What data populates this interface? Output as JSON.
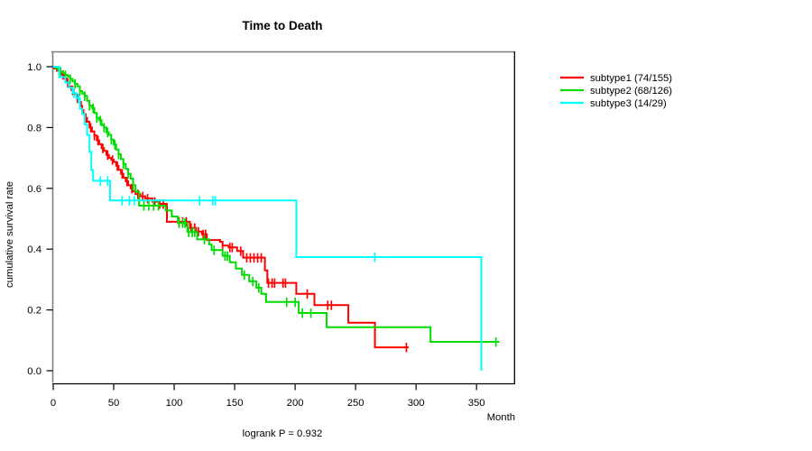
{
  "title": "Time to Death",
  "footer": "logrank P = 0.932",
  "axes": {
    "x": {
      "label": "Month",
      "ticks": [
        0,
        50,
        100,
        150,
        200,
        250,
        300,
        350
      ]
    },
    "y": {
      "label": "cumulative survival rate",
      "ticks": [
        1.0,
        0.8,
        0.6,
        0.4,
        0.2,
        0.0
      ]
    }
  },
  "legend": {
    "items": [
      {
        "label": "subtype1 (74/155)",
        "color": "#FF0000"
      },
      {
        "label": "subtype2 (68/126)",
        "color": "#00DC00"
      },
      {
        "label": "subtype3 (14/29)",
        "color": "#00FFFF"
      }
    ]
  },
  "chart_data": {
    "type": "line",
    "subtype": "kaplan-meier-step",
    "title": "Time to Death",
    "xlabel": "Month",
    "ylabel": "cumulative survival rate",
    "xlim": [
      0,
      380
    ],
    "ylim": [
      0.0,
      1.0
    ],
    "x_ticks": [
      0,
      50,
      100,
      150,
      200,
      250,
      300,
      350
    ],
    "y_ticks": [
      1.0,
      0.8,
      0.6,
      0.4,
      0.2,
      0.0
    ],
    "annotation": "logrank P = 0.932",
    "legend_position": "right-outside",
    "grid": false,
    "series": [
      {
        "name": "subtype1 (74/155)",
        "events": 74,
        "n": 155,
        "color": "#FF0000",
        "steps": [
          [
            0,
            1.0
          ],
          [
            1,
            0.994
          ],
          [
            3,
            0.987
          ],
          [
            5,
            0.981
          ],
          [
            7,
            0.974
          ],
          [
            9,
            0.961
          ],
          [
            11,
            0.948
          ],
          [
            13,
            0.935
          ],
          [
            15,
            0.923
          ],
          [
            17,
            0.91
          ],
          [
            19,
            0.897
          ],
          [
            21,
            0.884
          ],
          [
            23,
            0.871
          ],
          [
            24,
            0.858
          ],
          [
            25,
            0.845
          ],
          [
            26,
            0.832
          ],
          [
            28,
            0.819
          ],
          [
            30,
            0.8
          ],
          [
            32,
            0.787
          ],
          [
            34,
            0.774
          ],
          [
            36,
            0.758
          ],
          [
            38,
            0.745
          ],
          [
            40,
            0.732
          ],
          [
            42,
            0.723
          ],
          [
            44,
            0.71
          ],
          [
            46,
            0.7
          ],
          [
            48,
            0.694
          ],
          [
            50,
            0.687
          ],
          [
            52,
            0.674
          ],
          [
            54,
            0.661
          ],
          [
            56,
            0.648
          ],
          [
            58,
            0.635
          ],
          [
            60,
            0.623
          ],
          [
            62,
            0.61
          ],
          [
            64,
            0.6
          ],
          [
            66,
            0.59
          ],
          [
            68,
            0.581
          ],
          [
            72,
            0.574
          ],
          [
            76,
            0.567
          ],
          [
            82,
            0.556
          ],
          [
            88,
            0.549
          ],
          [
            94,
            0.49
          ],
          [
            113,
            0.47
          ],
          [
            118,
            0.458
          ],
          [
            123,
            0.449
          ],
          [
            127,
            0.43
          ],
          [
            138,
            0.424
          ],
          [
            140,
            0.412
          ],
          [
            145,
            0.406
          ],
          [
            152,
            0.394
          ],
          [
            157,
            0.372
          ],
          [
            175,
            0.33
          ],
          [
            177,
            0.289
          ],
          [
            201,
            0.253
          ],
          [
            216,
            0.216
          ],
          [
            244,
            0.158
          ],
          [
            266,
            0.077
          ]
        ],
        "end_time": 294,
        "censor_times": [
          5,
          8,
          12,
          16,
          20,
          24,
          27,
          31,
          34,
          37,
          41,
          45,
          49,
          53,
          57,
          61,
          65,
          70,
          74,
          78,
          84,
          88,
          91,
          104,
          107,
          110,
          114,
          117,
          120,
          124,
          126,
          140,
          146,
          148,
          155,
          160,
          163,
          166,
          169,
          172,
          178,
          181,
          183,
          190,
          192,
          210,
          227,
          230,
          292
        ]
      },
      {
        "name": "subtype2 (68/126)",
        "events": 68,
        "n": 126,
        "color": "#00DC00",
        "steps": [
          [
            0,
            1.0
          ],
          [
            2,
            0.995
          ],
          [
            4,
            0.989
          ],
          [
            6,
            0.984
          ],
          [
            8,
            0.979
          ],
          [
            10,
            0.973
          ],
          [
            12,
            0.968
          ],
          [
            14,
            0.96
          ],
          [
            16,
            0.952
          ],
          [
            18,
            0.944
          ],
          [
            20,
            0.936
          ],
          [
            22,
            0.92
          ],
          [
            24,
            0.912
          ],
          [
            26,
            0.904
          ],
          [
            28,
            0.888
          ],
          [
            30,
            0.872
          ],
          [
            32,
            0.864
          ],
          [
            34,
            0.848
          ],
          [
            36,
            0.832
          ],
          [
            38,
            0.824
          ],
          [
            40,
            0.808
          ],
          [
            42,
            0.8
          ],
          [
            44,
            0.784
          ],
          [
            46,
            0.776
          ],
          [
            48,
            0.76
          ],
          [
            50,
            0.744
          ],
          [
            52,
            0.728
          ],
          [
            54,
            0.712
          ],
          [
            56,
            0.696
          ],
          [
            58,
            0.68
          ],
          [
            60,
            0.664
          ],
          [
            62,
            0.648
          ],
          [
            64,
            0.632
          ],
          [
            66,
            0.61
          ],
          [
            68,
            0.589
          ],
          [
            71,
            0.543
          ],
          [
            93,
            0.527
          ],
          [
            98,
            0.507
          ],
          [
            103,
            0.486
          ],
          [
            111,
            0.456
          ],
          [
            119,
            0.432
          ],
          [
            129,
            0.415
          ],
          [
            131,
            0.397
          ],
          [
            140,
            0.378
          ],
          [
            146,
            0.357
          ],
          [
            151,
            0.336
          ],
          [
            156,
            0.315
          ],
          [
            162,
            0.294
          ],
          [
            168,
            0.273
          ],
          [
            172,
            0.253
          ],
          [
            176,
            0.226
          ],
          [
            203,
            0.19
          ],
          [
            226,
            0.143
          ],
          [
            312,
            0.095
          ]
        ],
        "end_time": 369,
        "censor_times": [
          6,
          10,
          14,
          18,
          22,
          26,
          30,
          33,
          36,
          39,
          42,
          45,
          48,
          51,
          54,
          58,
          62,
          66,
          75,
          79,
          83,
          87,
          104,
          107,
          109,
          112,
          115,
          117,
          125,
          133,
          142,
          144,
          158,
          165,
          170,
          193,
          200,
          206,
          213,
          366
        ]
      },
      {
        "name": "subtype3 (14/29)",
        "events": 14,
        "n": 29,
        "color": "#00FFFF",
        "steps": [
          [
            0,
            1.0
          ],
          [
            5,
            0.966
          ],
          [
            10,
            0.948
          ],
          [
            13,
            0.931
          ],
          [
            16,
            0.914
          ],
          [
            19,
            0.897
          ],
          [
            22,
            0.862
          ],
          [
            24,
            0.845
          ],
          [
            26,
            0.81
          ],
          [
            28,
            0.776
          ],
          [
            30,
            0.72
          ],
          [
            31.5,
            0.66
          ],
          [
            33,
            0.625
          ],
          [
            47,
            0.56
          ],
          [
            201,
            0.374
          ],
          [
            354,
            0.0
          ]
        ],
        "end_time": 354,
        "censor_times": [
          17,
          21,
          39,
          45,
          57,
          63,
          67,
          121,
          132,
          134,
          266
        ]
      }
    ]
  }
}
